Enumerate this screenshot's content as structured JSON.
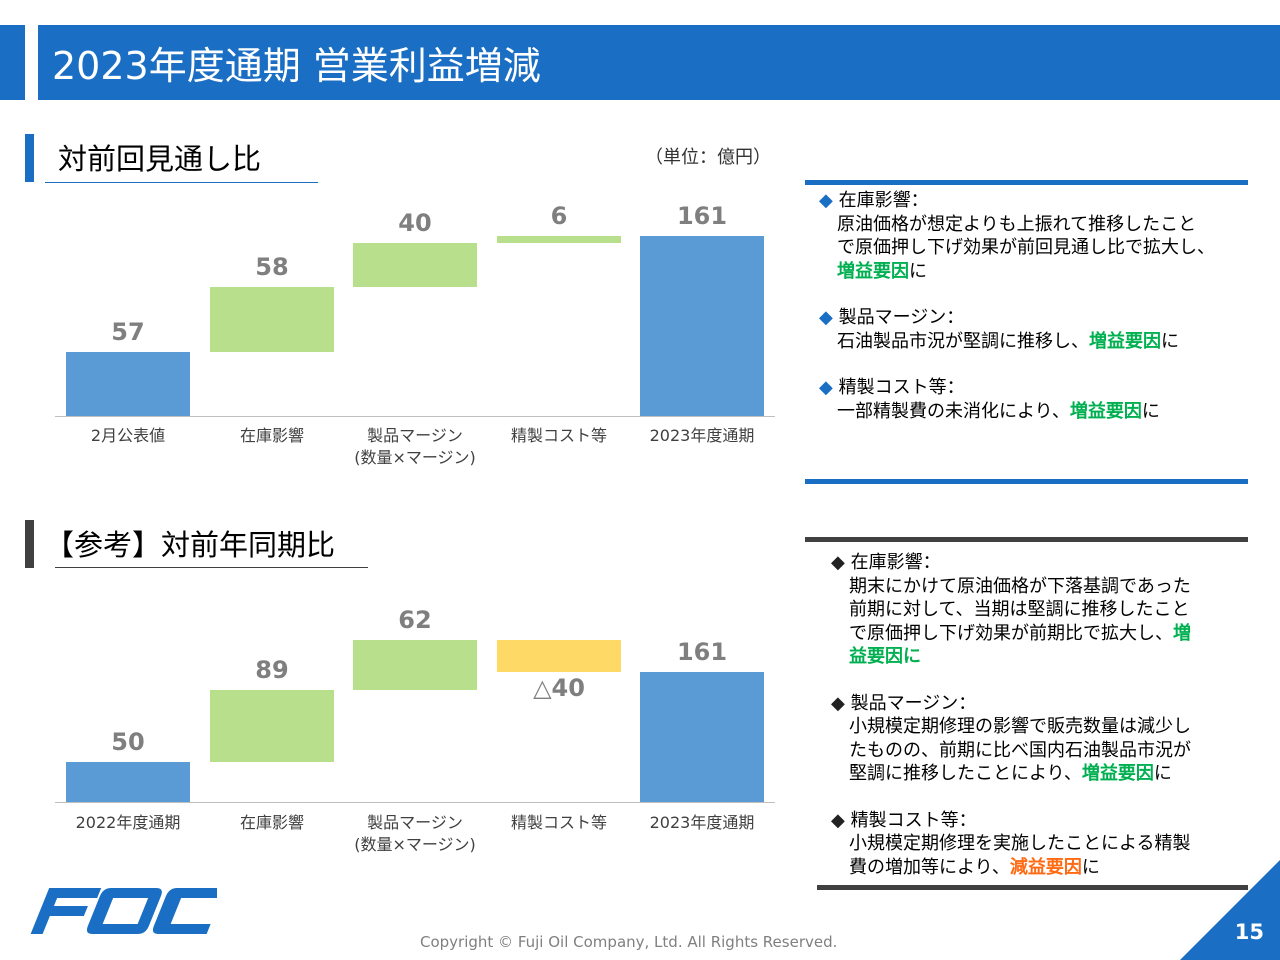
{
  "title": "2023年度通期 営業利益増減",
  "unit_label": "（単位：億円）",
  "section1": {
    "title": "対前回見通し比"
  },
  "section2": {
    "title": "【参考】対前年同期比"
  },
  "colors": {
    "header": "#1a6fc4",
    "start_end": "#5b9bd5",
    "increase": "#b8e08c",
    "decrease": "#ffd966",
    "positive_text": "#00b050",
    "negative_text": "#ff6a13"
  },
  "chart_data": [
    {
      "type": "waterfall",
      "categories": [
        "2月公表値",
        "在庫影響",
        "製品マージン\n(数量×マージン)",
        "精製コスト等",
        "2023年度通期"
      ],
      "values": [
        57,
        58,
        40,
        6,
        161
      ],
      "kinds": [
        "total",
        "delta",
        "delta",
        "delta",
        "total"
      ],
      "labels": [
        "57",
        "58",
        "40",
        "6",
        "161"
      ]
    },
    {
      "type": "waterfall",
      "categories": [
        "2022年度通期",
        "在庫影響",
        "製品マージン\n(数量×マージン)",
        "精製コスト等",
        "2023年度通期"
      ],
      "values": [
        50,
        89,
        62,
        -40,
        161
      ],
      "kinds": [
        "total",
        "delta",
        "delta",
        "delta",
        "total"
      ],
      "labels": [
        "50",
        "89",
        "62",
        "△40",
        "161"
      ]
    }
  ],
  "notes1": [
    {
      "head": "◆ 在庫影響：",
      "lines": [
        [
          "原油価格が想定よりも上振れて推移したこと"
        ],
        [
          "で原価押し下げ効果が前回見通し比で拡大し、"
        ],
        [
          {
            "t": "増益要因",
            "c": "green"
          },
          "に"
        ]
      ]
    },
    {
      "head": "◆ 製品マージン：",
      "lines": [
        [
          "石油製品市況が堅調に推移し、",
          {
            "t": "増益要因",
            "c": "green"
          },
          "に"
        ]
      ]
    },
    {
      "head": "◆ 精製コスト等：",
      "lines": [
        [
          "一部精製費の未消化により、",
          {
            "t": "増益要因",
            "c": "green"
          },
          "に"
        ]
      ]
    }
  ],
  "notes2": [
    {
      "head": "◆ 在庫影響：",
      "lines": [
        [
          "期末にかけて原油価格が下落基調であった"
        ],
        [
          "前期に対して、当期は堅調に推移したこと"
        ],
        [
          "で原価押し下げ効果が前期比で拡大し、",
          {
            "t": "増",
            "c": "green"
          }
        ],
        [
          {
            "t": "益要因に",
            "c": "green"
          }
        ]
      ]
    },
    {
      "head": "◆ 製品マージン：",
      "lines": [
        [
          "小規模定期修理の影響で販売数量は減少し"
        ],
        [
          "たものの、前期に比べ国内石油製品市況が"
        ],
        [
          "堅調に推移したことにより、",
          {
            "t": "増益要因",
            "c": "green"
          },
          "に"
        ]
      ]
    },
    {
      "head": "◆ 精製コスト等：",
      "lines": [
        [
          "小規模定期修理を実施したことによる精製"
        ],
        [
          "費の増加等により、",
          {
            "t": "減益要因",
            "c": "orange"
          },
          "に"
        ]
      ]
    }
  ],
  "logo_text": "FOC",
  "copyright": "Copyright © Fuji Oil Company, Ltd. All Rights Reserved.",
  "page_number": "15"
}
